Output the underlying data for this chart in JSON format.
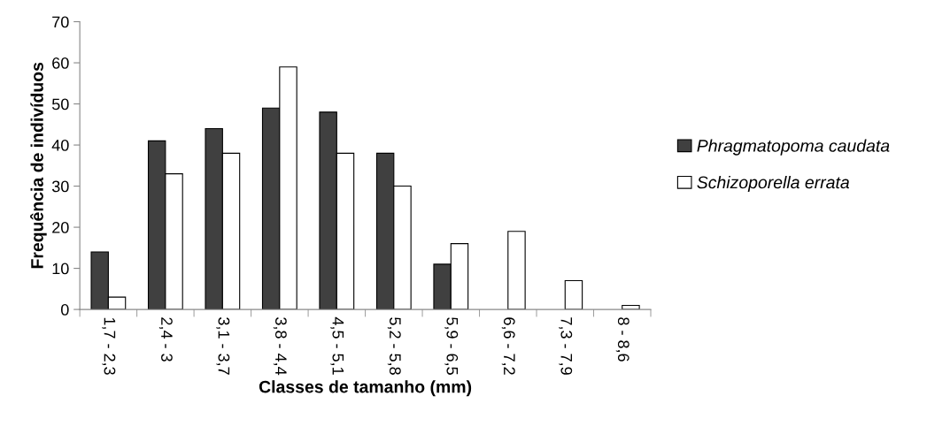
{
  "chart_data": {
    "type": "bar",
    "xlabel": "Classes de tamanho (mm)",
    "ylabel": "Frequência de indivíduos",
    "categories": [
      "1,7 - 2,3",
      "2,4 - 3",
      "3,1 - 3,7",
      "3,8 - 4,4",
      "4,5 - 5,1",
      "5,2 - 5,8",
      "5,9 - 6,5",
      "6,6 - 7,2",
      "7,3 - 7,9",
      "8 - 8,6"
    ],
    "series": [
      {
        "name": "Phragmatopoma caudata",
        "color": "#404040",
        "values": [
          14,
          41,
          44,
          49,
          48,
          38,
          11,
          null,
          null,
          null
        ]
      },
      {
        "name": "Schizoporella errata",
        "color": "#ffffff",
        "values": [
          3,
          33,
          38,
          59,
          38,
          30,
          16,
          19,
          7,
          1
        ]
      }
    ],
    "ylim": [
      0,
      70
    ],
    "yticks": [
      0,
      10,
      20,
      30,
      40,
      50,
      60,
      70
    ],
    "grid": false,
    "legend": "right"
  }
}
